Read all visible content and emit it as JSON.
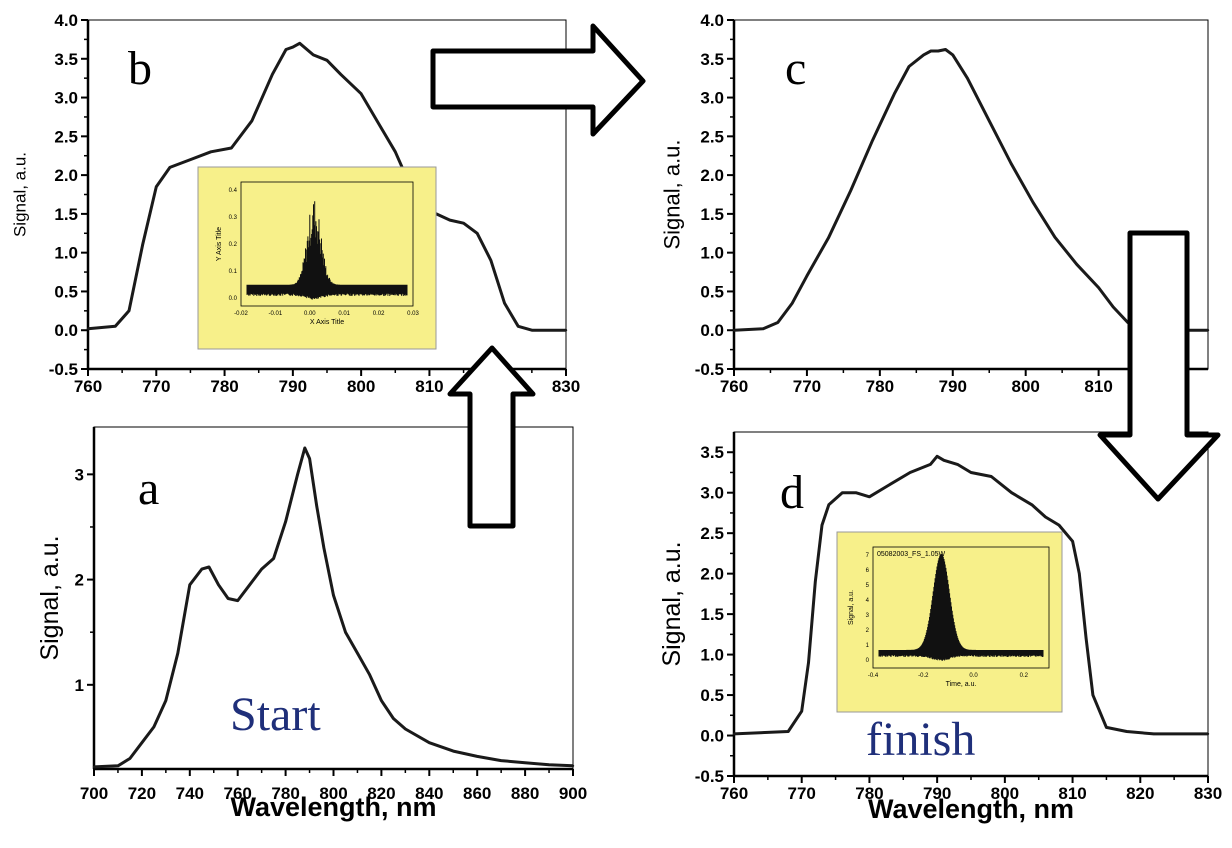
{
  "chart_data": [
    {
      "id": "b",
      "type": "line",
      "panel_label": "b",
      "xlabel": "",
      "ylabel": "Signal, a.u.",
      "xlim": [
        760,
        830
      ],
      "ylim": [
        -0.5,
        4.0
      ],
      "xticks": [
        760,
        770,
        780,
        790,
        800,
        810,
        820,
        830
      ],
      "yticks": [
        -0.5,
        0.0,
        0.5,
        1.0,
        1.5,
        2.0,
        2.5,
        3.0,
        3.5,
        4.0
      ],
      "x": [
        760,
        764,
        766,
        768,
        770,
        772,
        775,
        778,
        781,
        784,
        787,
        789,
        790,
        791,
        793,
        795,
        797,
        800,
        803,
        805,
        808,
        811,
        813,
        815,
        817,
        819,
        821,
        823,
        825,
        830
      ],
      "y": [
        0.02,
        0.05,
        0.25,
        1.1,
        1.85,
        2.1,
        2.2,
        2.3,
        2.35,
        2.7,
        3.3,
        3.62,
        3.65,
        3.7,
        3.55,
        3.48,
        3.3,
        3.05,
        2.6,
        2.3,
        1.7,
        1.5,
        1.42,
        1.38,
        1.25,
        0.9,
        0.35,
        0.05,
        0.0,
        0.0
      ],
      "inset": {
        "xlabel": "X Axis Title",
        "ylabel": "Y Axis Title",
        "xticks": [
          "-0.02",
          "-0.01",
          "0.00",
          "0.01",
          "0.02",
          "0.03"
        ],
        "yticks": [
          "0.0",
          "0.1",
          "0.2",
          "0.3",
          "0.4"
        ]
      }
    },
    {
      "id": "c",
      "type": "line",
      "panel_label": "c",
      "xlabel": "",
      "ylabel": "Signal, a.u.",
      "xlim": [
        760,
        825
      ],
      "ylim": [
        -0.5,
        4.0
      ],
      "xticks": [
        760,
        770,
        780,
        790,
        800,
        810,
        820
      ],
      "yticks": [
        -0.5,
        0.0,
        0.5,
        1.0,
        1.5,
        2.0,
        2.5,
        3.0,
        3.5,
        4.0
      ],
      "x": [
        760,
        764,
        766,
        768,
        770,
        773,
        776,
        779,
        782,
        784,
        786,
        787,
        788,
        789,
        790,
        792,
        795,
        798,
        801,
        804,
        807,
        810,
        812,
        814,
        816,
        820,
        825
      ],
      "y": [
        0.0,
        0.02,
        0.1,
        0.35,
        0.7,
        1.2,
        1.8,
        2.45,
        3.05,
        3.4,
        3.55,
        3.6,
        3.6,
        3.62,
        3.55,
        3.25,
        2.7,
        2.15,
        1.65,
        1.2,
        0.85,
        0.55,
        0.3,
        0.1,
        0.02,
        0.0,
        0.0
      ]
    },
    {
      "id": "a",
      "type": "line",
      "panel_label": "a",
      "xlabel": "Wavelength, nm",
      "ylabel": "Signal, a.u.",
      "xlim": [
        700,
        900
      ],
      "ylim": [
        0.2,
        3.45
      ],
      "xticks": [
        700,
        720,
        740,
        760,
        780,
        800,
        820,
        840,
        860,
        880,
        900
      ],
      "yticks": [
        1,
        2,
        3
      ],
      "x": [
        700,
        710,
        715,
        720,
        725,
        730,
        735,
        740,
        745,
        748,
        752,
        756,
        760,
        765,
        770,
        775,
        780,
        785,
        788,
        790,
        793,
        796,
        800,
        805,
        810,
        815,
        820,
        825,
        830,
        840,
        850,
        860,
        870,
        880,
        890,
        900
      ],
      "y": [
        0.22,
        0.23,
        0.3,
        0.45,
        0.6,
        0.85,
        1.3,
        1.95,
        2.1,
        2.12,
        1.95,
        1.82,
        1.8,
        1.95,
        2.1,
        2.2,
        2.55,
        3.0,
        3.25,
        3.15,
        2.7,
        2.3,
        1.85,
        1.5,
        1.3,
        1.1,
        0.85,
        0.68,
        0.58,
        0.45,
        0.37,
        0.32,
        0.28,
        0.26,
        0.24,
        0.23
      ]
    },
    {
      "id": "d",
      "type": "line",
      "panel_label": "d",
      "xlabel": "Wavelength, nm",
      "ylabel": "Signal, a.u.",
      "xlim": [
        760,
        830
      ],
      "ylim": [
        -0.5,
        3.75
      ],
      "xticks": [
        760,
        770,
        780,
        790,
        800,
        810,
        820,
        830
      ],
      "yticks": [
        -0.5,
        0.0,
        0.5,
        1.0,
        1.5,
        2.0,
        2.5,
        3.0,
        3.5
      ],
      "x": [
        760,
        768,
        770,
        771,
        772,
        773,
        774,
        776,
        778,
        780,
        783,
        786,
        789,
        790,
        791,
        793,
        795,
        798,
        801,
        804,
        806,
        808,
        810,
        811,
        812,
        813,
        815,
        818,
        822,
        830
      ],
      "y": [
        0.02,
        0.05,
        0.3,
        0.9,
        1.9,
        2.6,
        2.85,
        3.0,
        3.0,
        2.95,
        3.1,
        3.25,
        3.35,
        3.45,
        3.4,
        3.35,
        3.25,
        3.2,
        3.0,
        2.85,
        2.7,
        2.6,
        2.4,
        2.0,
        1.2,
        0.5,
        0.1,
        0.05,
        0.02,
        0.02
      ],
      "annotation": "finish",
      "inset": {
        "title": "05082003_FS_1.05W",
        "xlabel": "Time, a.u.",
        "ylabel": "Signal, a.u.",
        "xticks": [
          "-0.4",
          "-0.2",
          "0.0",
          "0.2"
        ],
        "yticks": [
          "0",
          "1",
          "2",
          "3",
          "4",
          "5",
          "6",
          "7"
        ]
      }
    }
  ],
  "annotations": {
    "a_text": "Start"
  },
  "colors": {
    "line": "#1a1a1a",
    "inset_bg": "#f7f08a",
    "annotation_text": "#1f2f7a"
  }
}
